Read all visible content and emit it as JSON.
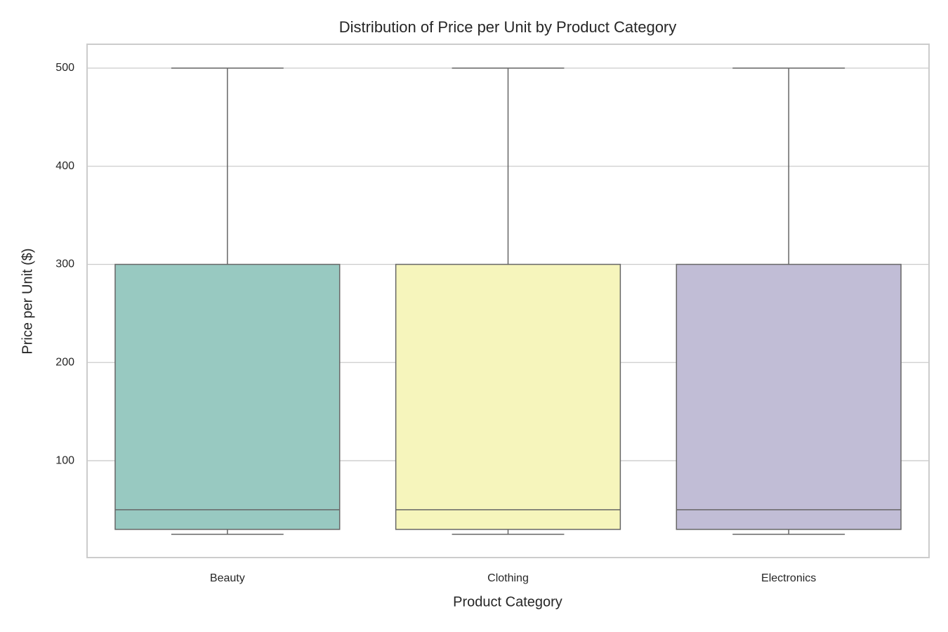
{
  "chart_data": {
    "type": "box",
    "title": "Distribution of Price per Unit by Product Category",
    "x_label": "Product Category",
    "y_label": "Price per Unit ($)",
    "categories": [
      "Beauty",
      "Clothing",
      "Electronics"
    ],
    "boxes": [
      {
        "whislo": 25,
        "q1": 30,
        "med": 50,
        "q3": 300,
        "whishi": 500
      },
      {
        "whislo": 25,
        "q1": 30,
        "med": 50,
        "q3": 300,
        "whishi": 500
      },
      {
        "whislo": 25,
        "q1": 30,
        "med": 50,
        "q3": 300,
        "whishi": 500
      }
    ],
    "colors": [
      "#98c9c1",
      "#f6f5bc",
      "#c1bdd6"
    ],
    "ylim": [
      1.3,
      524.3
    ],
    "yticks": [
      100,
      200,
      300,
      400,
      500
    ],
    "grid": true
  }
}
